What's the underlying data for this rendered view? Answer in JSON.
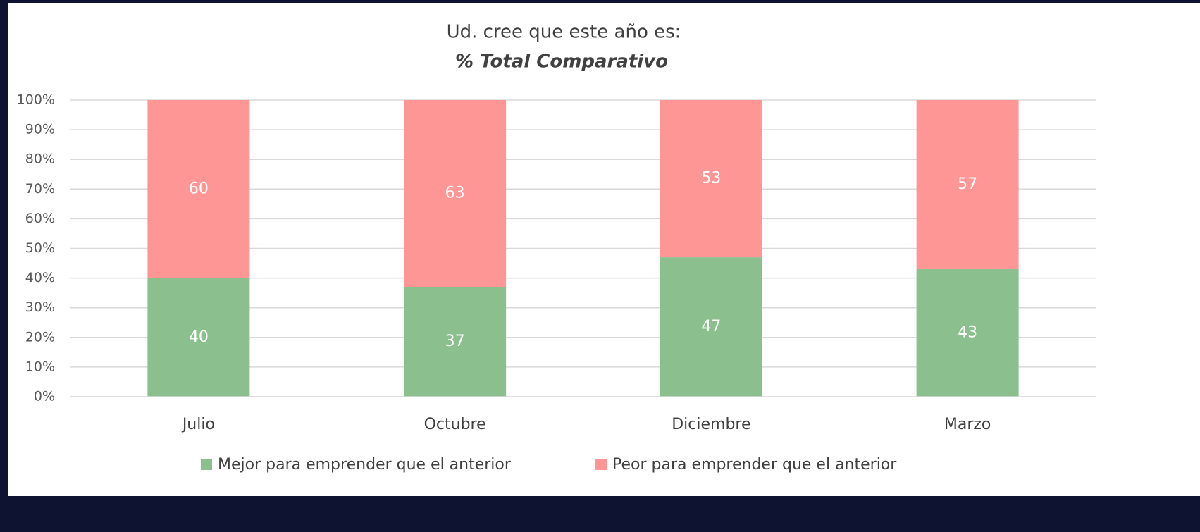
{
  "chart_data": {
    "type": "stacked_bar",
    "title": "Ud. cree que este año es:",
    "subtitle": "% Total Comparativo",
    "categories": [
      "Julio",
      "Octubre",
      "Diciembre",
      "Marzo"
    ],
    "series": [
      {
        "name": "Mejor para emprender que el anterior",
        "color": "#8bbf8d",
        "values": [
          40,
          37,
          47,
          43
        ]
      },
      {
        "name": "Peor para emprender que el anterior",
        "color": "#ff9696",
        "values": [
          60,
          63,
          53,
          57
        ]
      }
    ],
    "ylim": [
      0,
      100
    ],
    "yticks": [
      {
        "value": 0,
        "label": "0%"
      },
      {
        "value": 10,
        "label": "10%"
      },
      {
        "value": 20,
        "label": "20%"
      },
      {
        "value": 30,
        "label": "30%"
      },
      {
        "value": 40,
        "label": "40%"
      },
      {
        "value": 50,
        "label": "50%"
      },
      {
        "value": 60,
        "label": "60%"
      },
      {
        "value": 70,
        "label": "70%"
      },
      {
        "value": 80,
        "label": "80%"
      },
      {
        "value": 90,
        "label": "90%"
      },
      {
        "value": 100,
        "label": "100%"
      }
    ],
    "grid": true,
    "legend": "bottom"
  }
}
